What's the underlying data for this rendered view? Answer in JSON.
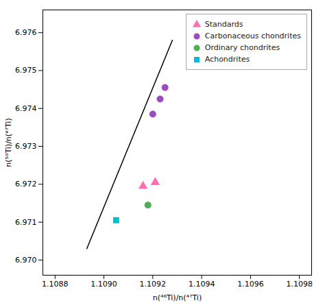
{
  "chart_data": {
    "type": "scatter",
    "xlabel": "n(⁴⁶Ti)/n(⁴⁷Ti)",
    "ylabel": "n(⁵⁰Ti)/n(⁴⁷Ti)",
    "xlim": [
      1.10875,
      1.10985
    ],
    "ylim": [
      6.9696,
      6.9766
    ],
    "xticks": [
      1.1088,
      {
        "value": 1.109,
        "label": "1.1090"
      },
      1.1092,
      1.1094,
      1.1096,
      1.1098
    ],
    "yticks": [
      {
        "value": 6.97,
        "label": "6.970"
      },
      6.971,
      6.972,
      6.973,
      6.974,
      6.975,
      6.976
    ],
    "grid": false,
    "legend": "upper right",
    "series": [
      {
        "type": "line",
        "color": "#000000",
        "x": [
          1.10893,
          1.10928
        ],
        "values": [
          6.9703,
          6.9758
        ]
      },
      {
        "name": "Standards",
        "type": "scatter",
        "marker": "triangle",
        "color": "#FF6EB4",
        "x": [
          1.10916,
          1.10921
        ],
        "values": [
          6.97195,
          6.97205
        ]
      },
      {
        "name": "Carbonaceous chondrites",
        "type": "scatter",
        "marker": "circle",
        "color": "#9B4DC0",
        "x": [
          1.1092,
          1.10923,
          1.10925
        ],
        "values": [
          6.97385,
          6.97425,
          6.97455
        ]
      },
      {
        "name": "Ordinary chondrites",
        "type": "scatter",
        "marker": "circle",
        "color": "#4CAF50",
        "x": [
          1.10918
        ],
        "values": [
          6.97145
        ]
      },
      {
        "name": "Achondrites",
        "type": "scatter",
        "marker": "square",
        "color": "#00BCD4",
        "x": [
          1.10905
        ],
        "values": [
          6.97105
        ]
      }
    ]
  }
}
